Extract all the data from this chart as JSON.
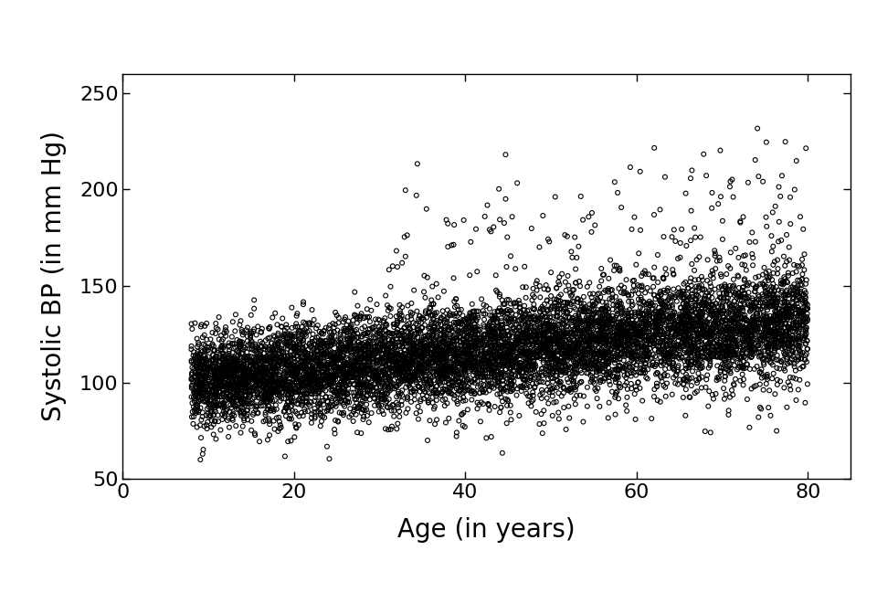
{
  "xlabel": "Age (in years)",
  "ylabel": "Systolic BP (in mm Hg)",
  "xlim": [
    0,
    85
  ],
  "ylim": [
    50,
    260
  ],
  "xticks": [
    0,
    20,
    40,
    60,
    80
  ],
  "yticks": [
    50,
    100,
    150,
    200,
    250
  ],
  "marker": "o",
  "marker_size": 3.5,
  "marker_color": "none",
  "marker_edgecolor": "#000000",
  "marker_linewidth": 0.8,
  "alpha": 1.0,
  "xlabel_fontsize": 20,
  "ylabel_fontsize": 20,
  "tick_fontsize": 16,
  "background_color": "#ffffff",
  "seed": 42,
  "n_samples": 9000,
  "age_min": 8,
  "age_max": 80
}
